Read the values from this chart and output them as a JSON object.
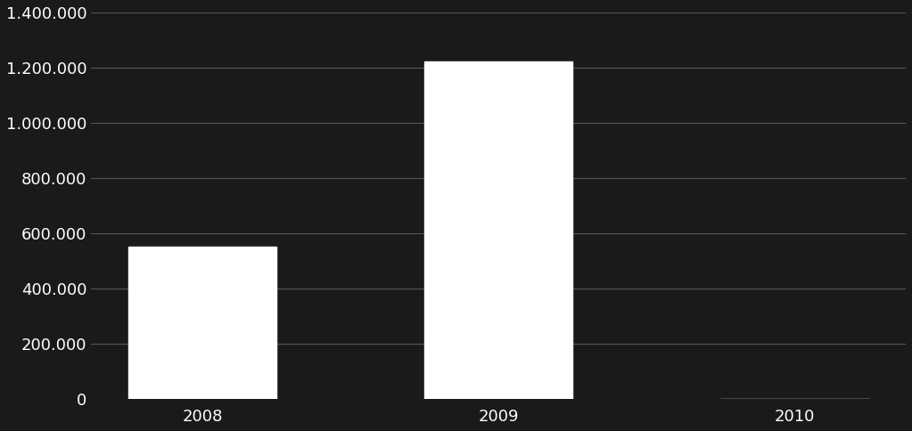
{
  "categories": [
    "2008",
    "2009",
    "2010"
  ],
  "values": [
    550000,
    1224013.85,
    0
  ],
  "bar_color": "#ffffff",
  "background_color": "#1a1a1a",
  "plot_bg_color": "#1a1a1a",
  "grid_color": "#555555",
  "text_color": "#ffffff",
  "ylim": [
    0,
    1400000
  ],
  "yticks": [
    0,
    200000,
    400000,
    600000,
    800000,
    1000000,
    1200000,
    1400000
  ],
  "ytick_labels": [
    "0",
    "200.000",
    "400.000",
    "600.000",
    "800.000",
    "1.000.000",
    "1.200.000",
    "1.400.000"
  ],
  "bar_width": 0.5,
  "tick_fontsize": 13,
  "label_fontsize": 13
}
